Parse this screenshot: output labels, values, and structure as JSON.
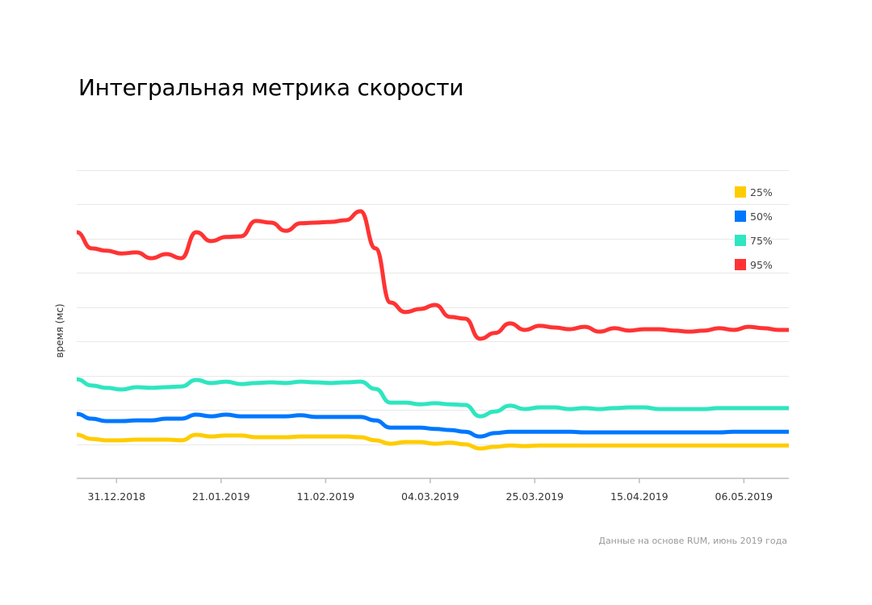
{
  "chart_data": {
    "type": "line",
    "title": "Интегральная метрика скорости",
    "ylabel": "время (мс)",
    "xlabel": "",
    "footnote": "Данные на основе RUM, июнь 2019 года",
    "xlim": [
      "2018-12-23",
      "2019-05-16"
    ],
    "ylim": [
      0,
      9
    ],
    "y_tick_labels_shown": false,
    "grid": true,
    "legend_position": "top-right",
    "x_ticks": [
      {
        "date": "2018-12-31",
        "label": "31.12.2018"
      },
      {
        "date": "2019-01-21",
        "label": "21.01.2019"
      },
      {
        "date": "2019-02-11",
        "label": "11.02.2019"
      },
      {
        "date": "2019-03-04",
        "label": "04.03.2019"
      },
      {
        "date": "2019-03-25",
        "label": "25.03.2019"
      },
      {
        "date": "2019-04-15",
        "label": "15.04.2019"
      },
      {
        "date": "2019-05-06",
        "label": "06.05.2019"
      }
    ],
    "x": [
      "2018-12-23",
      "2018-12-26",
      "2018-12-29",
      "2019-01-01",
      "2019-01-04",
      "2019-01-07",
      "2019-01-10",
      "2019-01-13",
      "2019-01-16",
      "2019-01-19",
      "2019-01-22",
      "2019-01-25",
      "2019-01-28",
      "2019-01-31",
      "2019-02-03",
      "2019-02-06",
      "2019-02-09",
      "2019-02-12",
      "2019-02-15",
      "2019-02-18",
      "2019-02-21",
      "2019-02-24",
      "2019-02-27",
      "2019-03-02",
      "2019-03-05",
      "2019-03-08",
      "2019-03-11",
      "2019-03-14",
      "2019-03-17",
      "2019-03-20",
      "2019-03-23",
      "2019-03-26",
      "2019-03-29",
      "2019-04-01",
      "2019-04-04",
      "2019-04-07",
      "2019-04-10",
      "2019-04-13",
      "2019-04-16",
      "2019-04-19",
      "2019-04-22",
      "2019-04-25",
      "2019-04-28",
      "2019-05-01",
      "2019-05-04",
      "2019-05-07",
      "2019-05-10",
      "2019-05-13",
      "2019-05-16"
    ],
    "series": [
      {
        "name": "25%",
        "color": "#ffcc00",
        "values": [
          1.27,
          1.15,
          1.11,
          1.11,
          1.13,
          1.13,
          1.13,
          1.11,
          1.27,
          1.22,
          1.25,
          1.25,
          1.2,
          1.2,
          1.2,
          1.22,
          1.22,
          1.22,
          1.22,
          1.2,
          1.11,
          1.01,
          1.06,
          1.06,
          1.01,
          1.04,
          0.99,
          0.87,
          0.92,
          0.96,
          0.94,
          0.96,
          0.96,
          0.96,
          0.96,
          0.96,
          0.96,
          0.96,
          0.96,
          0.96,
          0.96,
          0.96,
          0.96,
          0.96,
          0.96,
          0.96,
          0.96,
          0.96,
          0.96
        ]
      },
      {
        "name": "50%",
        "color": "#0077ff",
        "values": [
          1.88,
          1.74,
          1.67,
          1.67,
          1.69,
          1.69,
          1.74,
          1.74,
          1.86,
          1.81,
          1.86,
          1.81,
          1.81,
          1.81,
          1.81,
          1.84,
          1.79,
          1.79,
          1.79,
          1.79,
          1.69,
          1.48,
          1.48,
          1.48,
          1.44,
          1.41,
          1.36,
          1.22,
          1.32,
          1.36,
          1.36,
          1.36,
          1.36,
          1.36,
          1.34,
          1.34,
          1.34,
          1.34,
          1.34,
          1.34,
          1.34,
          1.34,
          1.34,
          1.34,
          1.36,
          1.36,
          1.36,
          1.36,
          1.36
        ]
      },
      {
        "name": "75%",
        "color": "#2ee6c0",
        "values": [
          2.89,
          2.71,
          2.64,
          2.59,
          2.66,
          2.64,
          2.66,
          2.68,
          2.87,
          2.78,
          2.82,
          2.75,
          2.78,
          2.8,
          2.78,
          2.82,
          2.8,
          2.78,
          2.8,
          2.82,
          2.61,
          2.21,
          2.21,
          2.16,
          2.19,
          2.16,
          2.14,
          1.81,
          1.95,
          2.12,
          2.02,
          2.07,
          2.07,
          2.02,
          2.05,
          2.02,
          2.05,
          2.07,
          2.07,
          2.02,
          2.02,
          2.02,
          2.02,
          2.05,
          2.05,
          2.05,
          2.05,
          2.05,
          2.05
        ]
      },
      {
        "name": "95%",
        "color": "#ff3333",
        "values": [
          7.18,
          6.71,
          6.64,
          6.56,
          6.59,
          6.42,
          6.54,
          6.42,
          7.18,
          6.92,
          7.04,
          7.06,
          7.51,
          7.46,
          7.22,
          7.44,
          7.46,
          7.48,
          7.53,
          7.79,
          6.71,
          5.13,
          4.85,
          4.94,
          5.06,
          4.71,
          4.66,
          4.07,
          4.24,
          4.52,
          4.33,
          4.45,
          4.4,
          4.35,
          4.42,
          4.28,
          4.38,
          4.31,
          4.35,
          4.35,
          4.31,
          4.28,
          4.31,
          4.38,
          4.33,
          4.42,
          4.38,
          4.33,
          4.33
        ]
      }
    ]
  }
}
